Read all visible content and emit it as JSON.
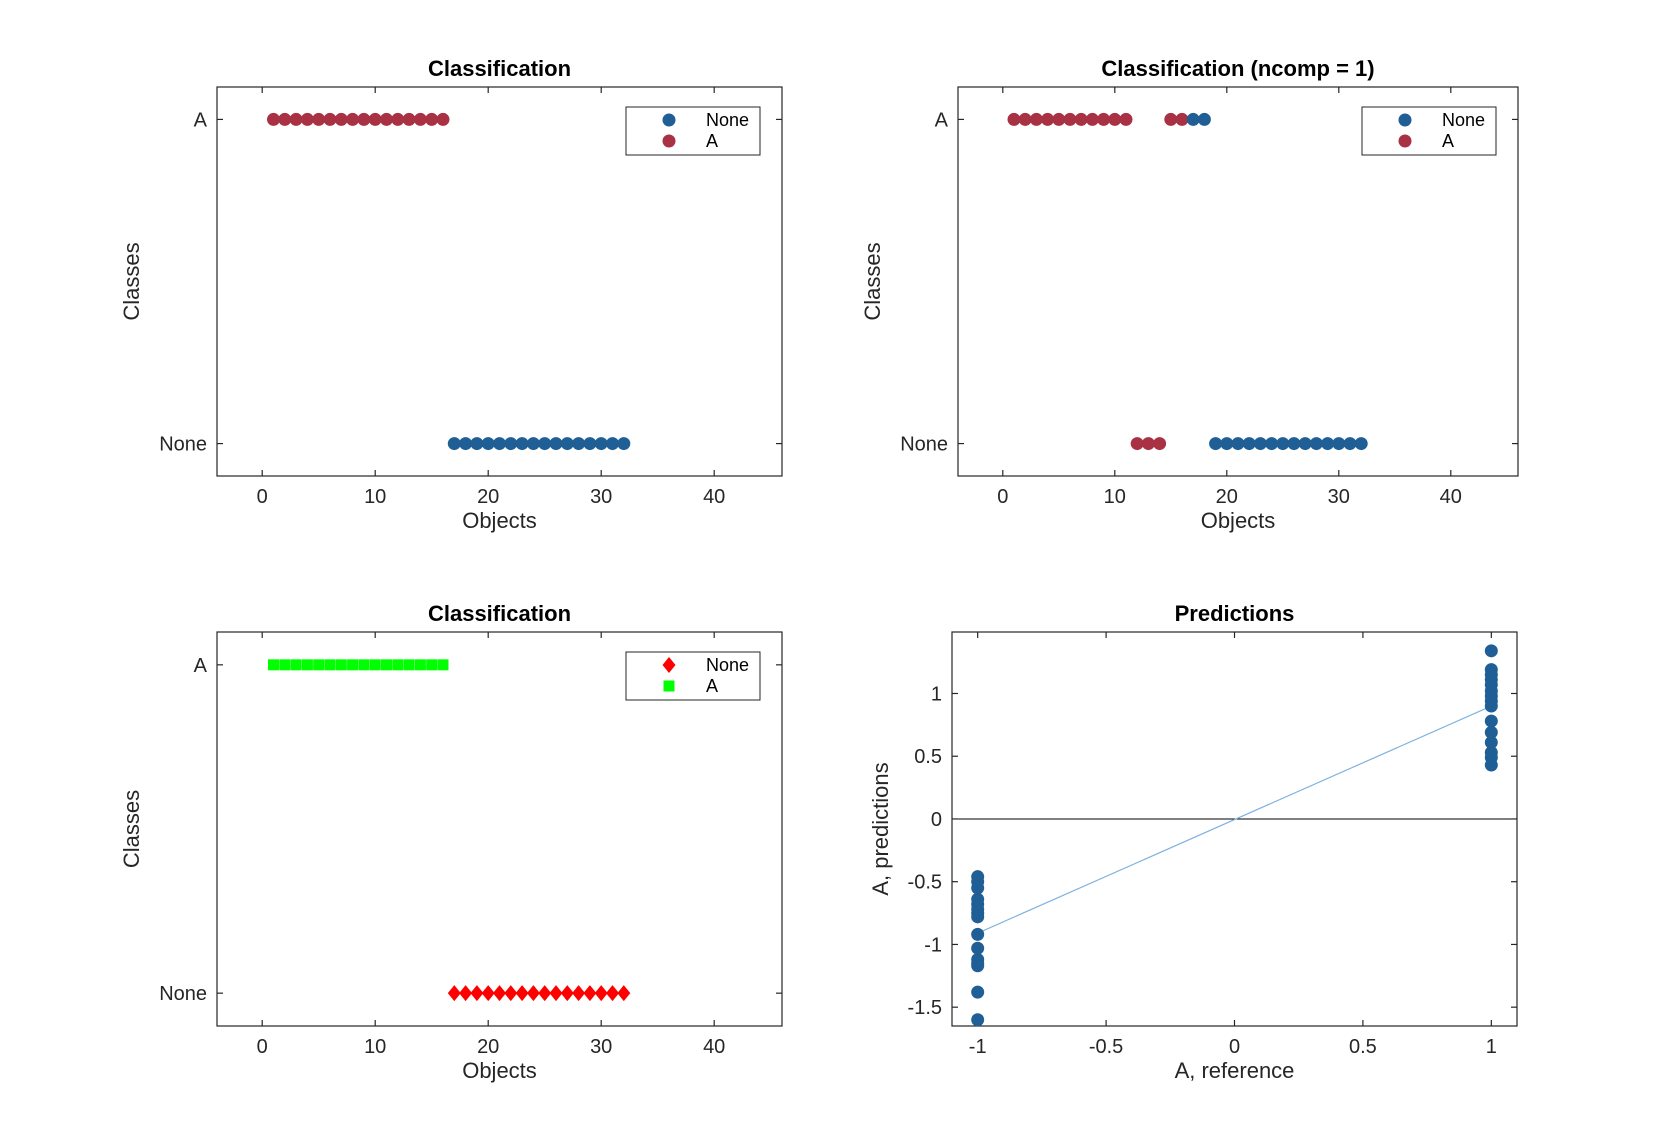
{
  "chart_data": [
    {
      "id": "tl",
      "type": "scatter",
      "title": "Classification",
      "xlabel": "Objects",
      "ylabel": "Classes",
      "xlim": [
        -4,
        46
      ],
      "xticks": [
        0,
        10,
        20,
        30,
        40
      ],
      "ylim": [
        -0.1,
        1.1
      ],
      "yticks": [
        {
          "value": 0,
          "label": "None"
        },
        {
          "value": 1,
          "label": "A"
        }
      ],
      "legend": {
        "placement": "top-right",
        "entries": [
          {
            "label": "None",
            "marker": "circle",
            "color": "#1f5f96"
          },
          {
            "label": "A",
            "marker": "circle",
            "color": "#a83244"
          }
        ]
      },
      "series": [
        {
          "name": "A",
          "marker": "circle",
          "color": "#a83244",
          "points": [
            [
              1,
              1
            ],
            [
              2,
              1
            ],
            [
              3,
              1
            ],
            [
              4,
              1
            ],
            [
              5,
              1
            ],
            [
              6,
              1
            ],
            [
              7,
              1
            ],
            [
              8,
              1
            ],
            [
              9,
              1
            ],
            [
              10,
              1
            ],
            [
              11,
              1
            ],
            [
              12,
              1
            ],
            [
              13,
              1
            ],
            [
              14,
              1
            ],
            [
              15,
              1
            ],
            [
              16,
              1
            ]
          ]
        },
        {
          "name": "None",
          "marker": "circle",
          "color": "#1f5f96",
          "points": [
            [
              17,
              0
            ],
            [
              18,
              0
            ],
            [
              19,
              0
            ],
            [
              20,
              0
            ],
            [
              21,
              0
            ],
            [
              22,
              0
            ],
            [
              23,
              0
            ],
            [
              24,
              0
            ],
            [
              25,
              0
            ],
            [
              26,
              0
            ],
            [
              27,
              0
            ],
            [
              28,
              0
            ],
            [
              29,
              0
            ],
            [
              30,
              0
            ],
            [
              31,
              0
            ],
            [
              32,
              0
            ]
          ]
        }
      ]
    },
    {
      "id": "tr",
      "type": "scatter",
      "title": "Classification (ncomp = 1)",
      "xlabel": "Objects",
      "ylabel": "Classes",
      "xlim": [
        -4,
        46
      ],
      "xticks": [
        0,
        10,
        20,
        30,
        40
      ],
      "ylim": [
        -0.1,
        1.1
      ],
      "yticks": [
        {
          "value": 0,
          "label": "None"
        },
        {
          "value": 1,
          "label": "A"
        }
      ],
      "legend": {
        "placement": "top-right",
        "entries": [
          {
            "label": "None",
            "marker": "circle",
            "color": "#1f5f96"
          },
          {
            "label": "A",
            "marker": "circle",
            "color": "#a83244"
          }
        ]
      },
      "series": [
        {
          "name": "A",
          "marker": "circle",
          "color": "#a83244",
          "points": [
            [
              1,
              1
            ],
            [
              2,
              1
            ],
            [
              3,
              1
            ],
            [
              4,
              1
            ],
            [
              5,
              1
            ],
            [
              6,
              1
            ],
            [
              7,
              1
            ],
            [
              8,
              1
            ],
            [
              9,
              1
            ],
            [
              10,
              1
            ],
            [
              11,
              1
            ],
            [
              12,
              0
            ],
            [
              13,
              0
            ],
            [
              14,
              0
            ],
            [
              15,
              1
            ],
            [
              16,
              1
            ]
          ]
        },
        {
          "name": "None",
          "marker": "circle",
          "color": "#1f5f96",
          "points": [
            [
              17,
              1
            ],
            [
              18,
              1
            ],
            [
              19,
              0
            ],
            [
              20,
              0
            ],
            [
              21,
              0
            ],
            [
              22,
              0
            ],
            [
              23,
              0
            ],
            [
              24,
              0
            ],
            [
              25,
              0
            ],
            [
              26,
              0
            ],
            [
              27,
              0
            ],
            [
              28,
              0
            ],
            [
              29,
              0
            ],
            [
              30,
              0
            ],
            [
              31,
              0
            ],
            [
              32,
              0
            ]
          ]
        }
      ]
    },
    {
      "id": "bl",
      "type": "scatter",
      "title": "Classification",
      "xlabel": "Objects",
      "ylabel": "Classes",
      "xlim": [
        -4,
        46
      ],
      "xticks": [
        0,
        10,
        20,
        30,
        40
      ],
      "ylim": [
        -0.1,
        1.1
      ],
      "yticks": [
        {
          "value": 0,
          "label": "None"
        },
        {
          "value": 1,
          "label": "A"
        }
      ],
      "legend": {
        "placement": "top-right",
        "entries": [
          {
            "label": "None",
            "marker": "diamond",
            "color": "#ff0000"
          },
          {
            "label": "A",
            "marker": "square",
            "color": "#00ff00"
          }
        ]
      },
      "series": [
        {
          "name": "A",
          "marker": "square",
          "color": "#00ff00",
          "points": [
            [
              1,
              1
            ],
            [
              2,
              1
            ],
            [
              3,
              1
            ],
            [
              4,
              1
            ],
            [
              5,
              1
            ],
            [
              6,
              1
            ],
            [
              7,
              1
            ],
            [
              8,
              1
            ],
            [
              9,
              1
            ],
            [
              10,
              1
            ],
            [
              11,
              1
            ],
            [
              12,
              1
            ],
            [
              13,
              1
            ],
            [
              14,
              1
            ],
            [
              15,
              1
            ],
            [
              16,
              1
            ]
          ]
        },
        {
          "name": "None",
          "marker": "diamond",
          "color": "#ff0000",
          "points": [
            [
              17,
              0
            ],
            [
              18,
              0
            ],
            [
              19,
              0
            ],
            [
              20,
              0
            ],
            [
              21,
              0
            ],
            [
              22,
              0
            ],
            [
              23,
              0
            ],
            [
              24,
              0
            ],
            [
              25,
              0
            ],
            [
              26,
              0
            ],
            [
              27,
              0
            ],
            [
              28,
              0
            ],
            [
              29,
              0
            ],
            [
              30,
              0
            ],
            [
              31,
              0
            ],
            [
              32,
              0
            ]
          ]
        }
      ]
    },
    {
      "id": "br",
      "type": "scatter",
      "title": "Predictions",
      "xlabel": "A, reference",
      "ylabel": "A, predictions",
      "xlim": [
        -1.1,
        1.1
      ],
      "xticks": [
        -1,
        -0.5,
        0,
        0.5,
        1
      ],
      "ylim": [
        -1.65,
        1.49
      ],
      "yticks": [
        {
          "value": -1.5,
          "label": "-1.5"
        },
        {
          "value": -1,
          "label": "-1"
        },
        {
          "value": -0.5,
          "label": "-0.5"
        },
        {
          "value": 0,
          "label": "0"
        },
        {
          "value": 0.5,
          "label": "0.5"
        },
        {
          "value": 1,
          "label": "1"
        }
      ],
      "hline": {
        "y": 0,
        "color": "#000000"
      },
      "fit_line": {
        "x": [
          -1,
          1
        ],
        "y": [
          -0.91,
          0.9
        ],
        "color": "#7fb3e0"
      },
      "series": [
        {
          "name": "None",
          "marker": "circle",
          "color": "#1f5f96",
          "points": [
            [
              -1,
              -0.46
            ],
            [
              -1,
              -0.5
            ],
            [
              -1,
              -0.55
            ],
            [
              -1,
              -0.64
            ],
            [
              -1,
              -0.68
            ],
            [
              -1,
              -0.72
            ],
            [
              -1,
              -0.75
            ],
            [
              -1,
              -0.78
            ],
            [
              -1,
              -0.92
            ],
            [
              -1,
              -1.03
            ],
            [
              -1,
              -1.12
            ],
            [
              -1,
              -1.15
            ],
            [
              -1,
              -1.17
            ],
            [
              -1,
              -1.38
            ],
            [
              -1,
              -1.6
            ]
          ]
        },
        {
          "name": "A",
          "marker": "circle",
          "color": "#1f5f96",
          "points": [
            [
              1,
              1.34
            ],
            [
              1,
              1.19
            ],
            [
              1,
              1.15
            ],
            [
              1,
              1.11
            ],
            [
              1,
              1.07
            ],
            [
              1,
              1.02
            ],
            [
              1,
              0.98
            ],
            [
              1,
              0.94
            ],
            [
              1,
              0.9
            ],
            [
              1,
              0.78
            ],
            [
              1,
              0.69
            ],
            [
              1,
              0.61
            ],
            [
              1,
              0.53
            ],
            [
              1,
              0.49
            ],
            [
              1,
              0.43
            ]
          ]
        }
      ]
    }
  ]
}
